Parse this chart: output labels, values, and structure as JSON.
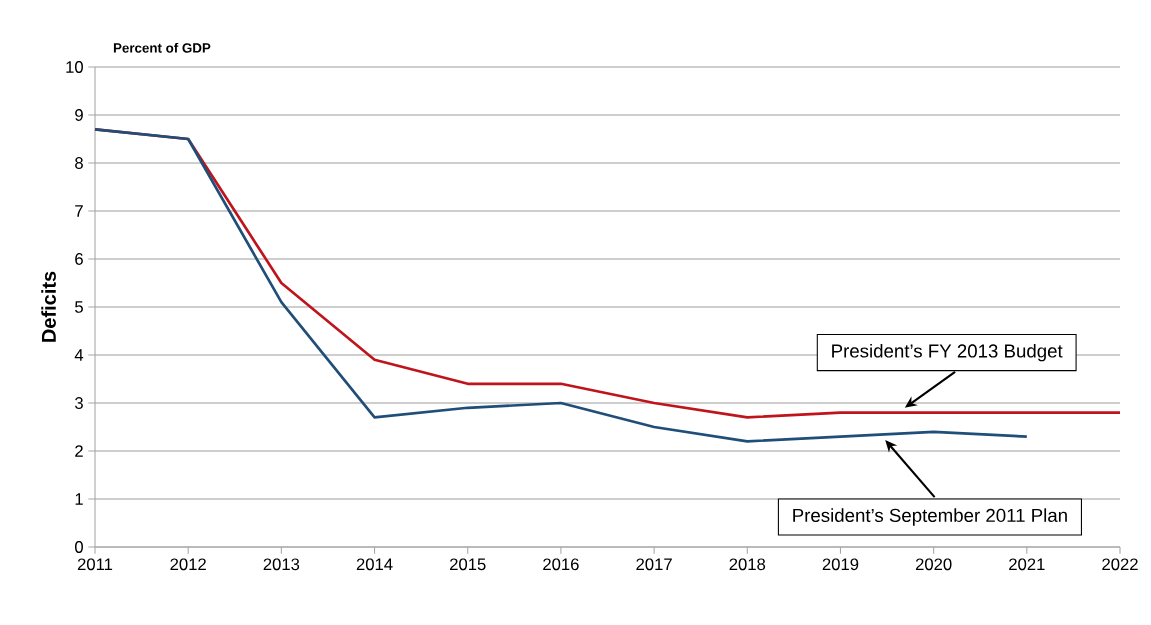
{
  "chart_data": {
    "type": "line",
    "ylabel": "Deficits",
    "annotations": [
      "Percent of GDP"
    ],
    "x": [
      2011,
      2012,
      2013,
      2014,
      2015,
      2016,
      2017,
      2018,
      2019,
      2020,
      2021,
      2022
    ],
    "series": [
      {
        "name": "President’s FY 2013 Budget",
        "color": "#c0141c",
        "values": [
          8.7,
          8.5,
          5.5,
          3.9,
          3.4,
          3.4,
          3.0,
          2.7,
          2.8,
          2.8,
          2.8,
          2.8
        ]
      },
      {
        "name": "President’s September 2011 Plan",
        "color": "#1f4e79",
        "values": [
          8.7,
          8.5,
          5.1,
          2.7,
          2.9,
          3.0,
          2.5,
          2.2,
          2.3,
          2.4,
          2.3,
          null
        ]
      }
    ],
    "xlim": [
      2011,
      2022
    ],
    "xticks": [
      2011,
      2012,
      2013,
      2014,
      2015,
      2016,
      2017,
      2018,
      2019,
      2020,
      2021,
      2022
    ],
    "ylim": [
      0,
      10
    ],
    "yticks": [
      0,
      1,
      2,
      3,
      4,
      5,
      6,
      7,
      8,
      9,
      10
    ],
    "grid": "y",
    "legend": false,
    "marker": "none",
    "line_style": "solid"
  }
}
